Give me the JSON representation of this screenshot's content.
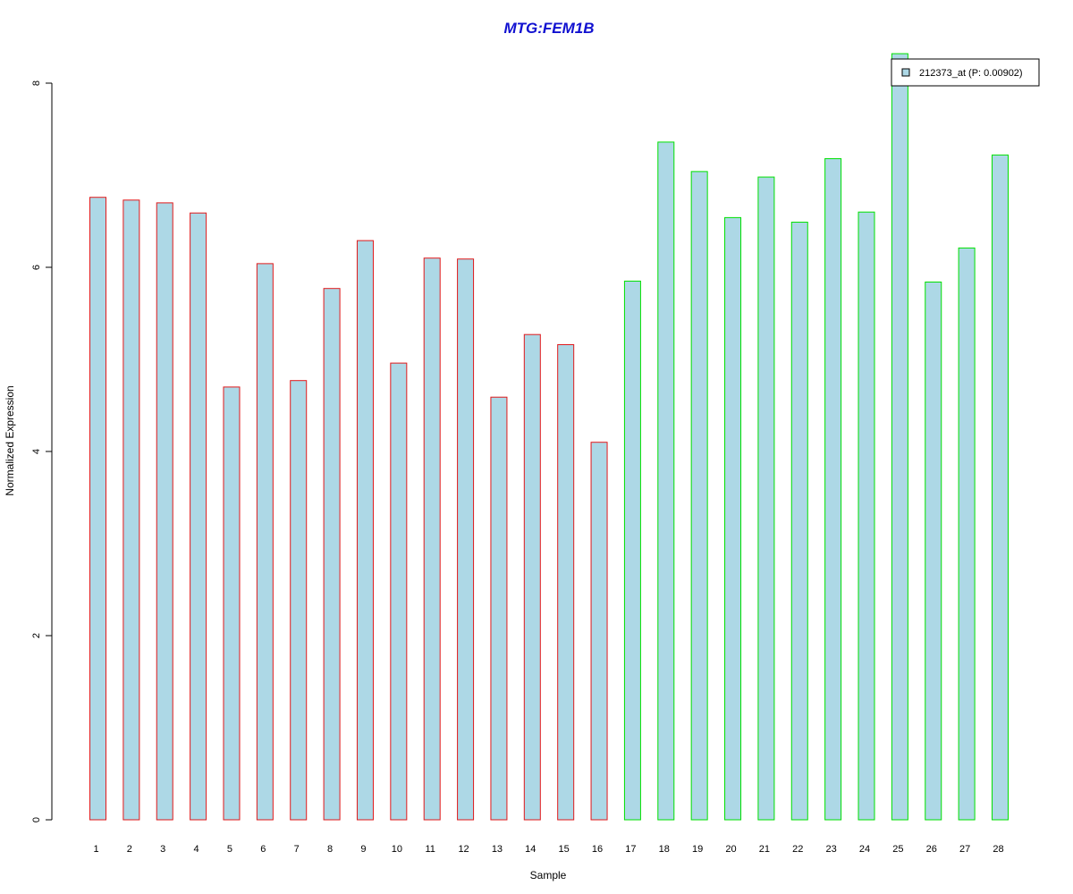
{
  "chart_data": {
    "type": "bar",
    "title": "MTG:FEM1B",
    "xlabel": "Sample",
    "ylabel": "Normalized Expression",
    "categories": [
      "1",
      "2",
      "3",
      "4",
      "5",
      "6",
      "7",
      "8",
      "9",
      "10",
      "11",
      "12",
      "13",
      "14",
      "15",
      "16",
      "17",
      "18",
      "19",
      "20",
      "21",
      "22",
      "23",
      "24",
      "25",
      "26",
      "27",
      "28"
    ],
    "series": [
      {
        "name": "212373_at (P: 0.00902)",
        "values": [
          6.76,
          6.73,
          6.7,
          6.59,
          4.7,
          6.04,
          4.77,
          5.77,
          6.29,
          4.96,
          6.1,
          6.09,
          4.59,
          5.27,
          5.16,
          4.1,
          5.85,
          7.36,
          7.04,
          6.54,
          6.98,
          6.49,
          7.18,
          6.6,
          8.32,
          5.84,
          6.21,
          7.22
        ]
      }
    ],
    "groups": [
      {
        "samples": [
          1,
          16
        ],
        "border_color": "#e0191b"
      },
      {
        "samples": [
          17,
          28
        ],
        "border_color": "#00e000"
      }
    ],
    "yticks": [
      0,
      2,
      4,
      6,
      8
    ],
    "ylim": [
      0,
      8.3
    ],
    "fill_color": "#add8e6",
    "title_color": "#1010d0",
    "legend_position": "top-right",
    "grid": false
  }
}
